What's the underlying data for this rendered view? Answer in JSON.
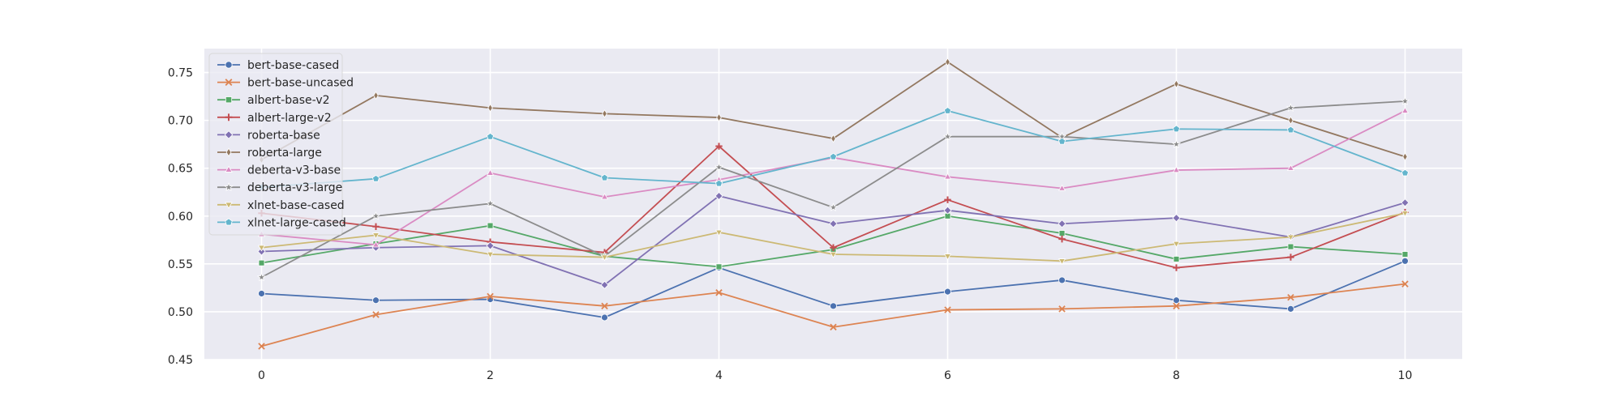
{
  "chart_data": {
    "type": "line",
    "title": "",
    "xlabel": "",
    "ylabel": "",
    "x": [
      0,
      1,
      2,
      3,
      4,
      5,
      6,
      7,
      8,
      9,
      10
    ],
    "xlim": [
      -0.5,
      10.5
    ],
    "ylim": [
      0.45,
      0.775
    ],
    "xticks": [
      "0",
      "2",
      "4",
      "6",
      "8",
      "10"
    ],
    "yticks": [
      "0.45",
      "0.50",
      "0.55",
      "0.60",
      "0.65",
      "0.70",
      "0.75"
    ],
    "grid": true,
    "legend_position": "top-left",
    "background": "#EAEAF2",
    "series": [
      {
        "name": "bert-base-cased",
        "color": "#4C72B0",
        "marker": "circle",
        "values": [
          0.519,
          0.512,
          0.513,
          0.494,
          0.546,
          0.506,
          0.521,
          0.533,
          0.512,
          0.503,
          0.553
        ]
      },
      {
        "name": "bert-base-uncased",
        "color": "#DD8452",
        "marker": "x",
        "values": [
          0.464,
          0.497,
          0.516,
          0.506,
          0.52,
          0.484,
          0.502,
          0.503,
          0.506,
          0.515,
          0.529
        ]
      },
      {
        "name": "albert-base-v2",
        "color": "#55A868",
        "marker": "square",
        "values": [
          0.551,
          0.571,
          0.59,
          0.558,
          0.547,
          0.565,
          0.6,
          0.582,
          0.555,
          0.568,
          0.56
        ]
      },
      {
        "name": "albert-large-v2",
        "color": "#C44E52",
        "marker": "plus",
        "values": [
          0.603,
          0.589,
          0.573,
          0.562,
          0.673,
          0.567,
          0.617,
          0.576,
          0.546,
          0.557,
          0.604
        ]
      },
      {
        "name": "roberta-base",
        "color": "#8172B3",
        "marker": "diamond",
        "values": [
          0.563,
          0.567,
          0.569,
          0.528,
          0.621,
          0.592,
          0.606,
          0.592,
          0.598,
          0.578,
          0.614
        ]
      },
      {
        "name": "roberta-large",
        "color": "#937860",
        "marker": "thin_diamond",
        "values": [
          0.659,
          0.726,
          0.713,
          0.707,
          0.703,
          0.681,
          0.761,
          0.682,
          0.738,
          0.7,
          0.662
        ]
      },
      {
        "name": "deberta-v3-base",
        "color": "#DA8BC3",
        "marker": "triangle_up",
        "values": [
          0.581,
          0.57,
          0.645,
          0.62,
          0.638,
          0.661,
          0.641,
          0.629,
          0.648,
          0.65,
          0.71
        ]
      },
      {
        "name": "deberta-v3-large",
        "color": "#8C8C8C",
        "marker": "star",
        "values": [
          0.536,
          0.6,
          0.613,
          0.558,
          0.651,
          0.609,
          0.683,
          0.683,
          0.675,
          0.713,
          0.72
        ]
      },
      {
        "name": "xlnet-base-cased",
        "color": "#CCB974",
        "marker": "triangle_down",
        "values": [
          0.567,
          0.58,
          0.56,
          0.557,
          0.583,
          0.56,
          0.558,
          0.553,
          0.571,
          0.578,
          0.603
        ]
      },
      {
        "name": "xlnet-large-cased",
        "color": "#64B5CD",
        "marker": "pentagon",
        "values": [
          0.63,
          0.639,
          0.683,
          0.64,
          0.634,
          0.662,
          0.71,
          0.678,
          0.691,
          0.69,
          0.645
        ]
      }
    ]
  }
}
